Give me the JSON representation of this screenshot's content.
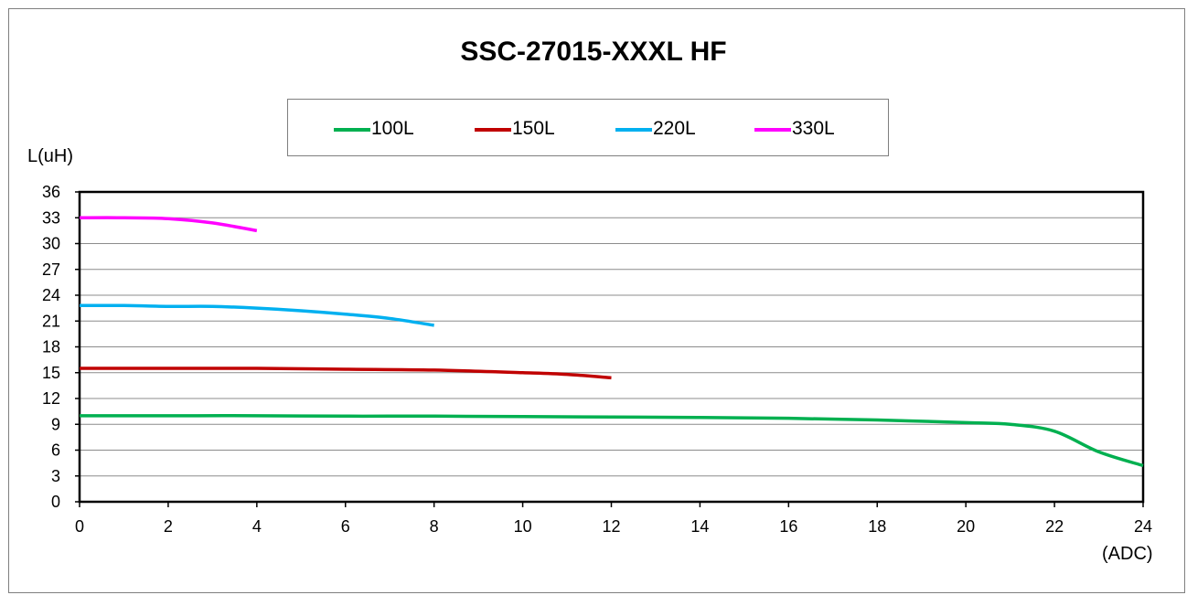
{
  "chart_data": {
    "type": "line",
    "title": "SSC-27015-XXXL HF",
    "ylabel": "L(uH)",
    "xlabel": "(ADC)",
    "xlim": [
      0,
      24
    ],
    "ylim": [
      0,
      36
    ],
    "xticks": [
      0,
      2,
      4,
      6,
      8,
      10,
      12,
      14,
      16,
      18,
      20,
      22,
      24
    ],
    "yticks": [
      0,
      3,
      6,
      9,
      12,
      15,
      18,
      21,
      24,
      27,
      30,
      33,
      36
    ],
    "grid": "horizontal",
    "legend_position": "top-center",
    "series": [
      {
        "name": "100L",
        "color": "#00b050",
        "points": [
          [
            0,
            10.0
          ],
          [
            2,
            10.0
          ],
          [
            4,
            10.0
          ],
          [
            6,
            9.95
          ],
          [
            8,
            9.95
          ],
          [
            10,
            9.9
          ],
          [
            12,
            9.85
          ],
          [
            14,
            9.8
          ],
          [
            16,
            9.7
          ],
          [
            18,
            9.5
          ],
          [
            20,
            9.2
          ],
          [
            21,
            9.0
          ],
          [
            22,
            8.2
          ],
          [
            23,
            5.8
          ],
          [
            24,
            4.2
          ]
        ]
      },
      {
        "name": "150L",
        "color": "#c00000",
        "points": [
          [
            0,
            15.5
          ],
          [
            2,
            15.5
          ],
          [
            4,
            15.5
          ],
          [
            6,
            15.4
          ],
          [
            8,
            15.3
          ],
          [
            10,
            15.0
          ],
          [
            11,
            14.8
          ],
          [
            12,
            14.4
          ]
        ]
      },
      {
        "name": "220L",
        "color": "#00b0f0",
        "points": [
          [
            0,
            22.8
          ],
          [
            1,
            22.8
          ],
          [
            2,
            22.7
          ],
          [
            3,
            22.7
          ],
          [
            4,
            22.5
          ],
          [
            5,
            22.2
          ],
          [
            6,
            21.8
          ],
          [
            7,
            21.3
          ],
          [
            8,
            20.5
          ]
        ]
      },
      {
        "name": "330L",
        "color": "#ff00ff",
        "points": [
          [
            0,
            33.0
          ],
          [
            1,
            33.0
          ],
          [
            2,
            32.9
          ],
          [
            3,
            32.4
          ],
          [
            4,
            31.5
          ]
        ]
      }
    ]
  }
}
